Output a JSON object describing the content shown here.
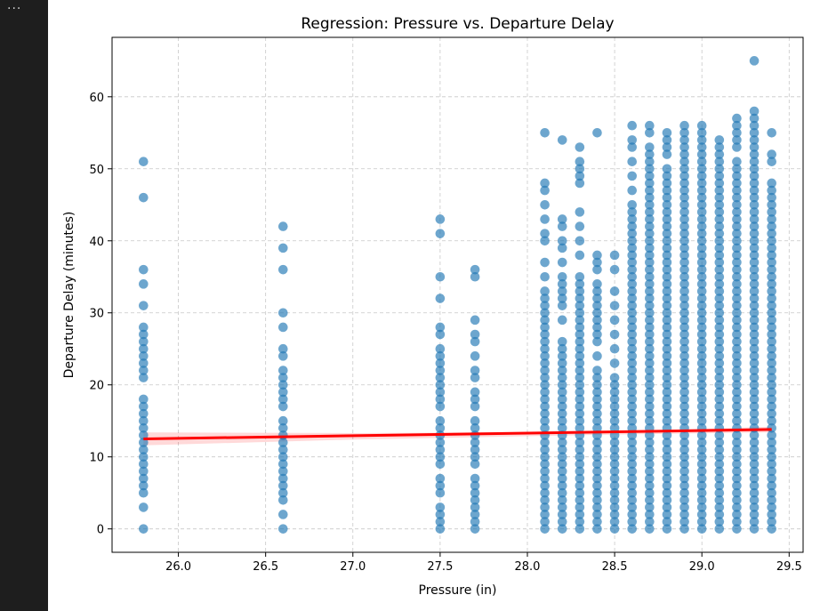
{
  "cell": {
    "more_actions_glyph": "···"
  },
  "chart_data": {
    "type": "scatter",
    "title": "Regression: Pressure vs. Departure Delay",
    "xlabel": "Pressure (in)",
    "ylabel": "Departure Delay (minutes)",
    "xlim": [
      25.62,
      29.58
    ],
    "ylim": [
      -3.25,
      68.25
    ],
    "x_ticks": [
      26.0,
      26.5,
      27.0,
      27.5,
      28.0,
      28.5,
      29.0,
      29.5
    ],
    "x_tick_labels": [
      "26.0",
      "26.5",
      "27.0",
      "27.5",
      "28.0",
      "28.5",
      "29.0",
      "29.5"
    ],
    "y_ticks": [
      0,
      10,
      20,
      30,
      40,
      50,
      60
    ],
    "y_tick_labels": [
      "0",
      "10",
      "20",
      "30",
      "40",
      "50",
      "60"
    ],
    "grid": true,
    "point_color": "#1f77b4",
    "regression_color": "#ff0000",
    "columns": [
      {
        "x": 25.8,
        "y": [
          0,
          3,
          5,
          6,
          7,
          8,
          9,
          10,
          11,
          12,
          13,
          14,
          15,
          16,
          17,
          18,
          21,
          22,
          23,
          24,
          25,
          26,
          27,
          28,
          31,
          34,
          36,
          46,
          51
        ]
      },
      {
        "x": 26.6,
        "y": [
          0,
          2,
          4,
          5,
          6,
          7,
          8,
          9,
          10,
          11,
          12,
          13,
          14,
          15,
          17,
          18,
          19,
          20,
          21,
          22,
          24,
          25,
          28,
          30,
          36,
          39,
          42
        ]
      },
      {
        "x": 27.5,
        "y": [
          0,
          1,
          2,
          3,
          5,
          6,
          7,
          9,
          10,
          11,
          12,
          13,
          14,
          15,
          17,
          18,
          19,
          20,
          21,
          22,
          23,
          24,
          25,
          27,
          28,
          32,
          35,
          41,
          43
        ]
      },
      {
        "x": 27.7,
        "y": [
          0,
          1,
          2,
          3,
          4,
          5,
          6,
          7,
          9,
          10,
          11,
          12,
          13,
          14,
          15,
          17,
          18,
          19,
          21,
          22,
          24,
          26,
          27,
          29,
          35,
          36
        ]
      },
      {
        "x": 28.1,
        "y": [
          0,
          1,
          2,
          3,
          4,
          5,
          6,
          7,
          8,
          9,
          10,
          11,
          12,
          13,
          14,
          15,
          16,
          17,
          18,
          19,
          20,
          21,
          22,
          23,
          24,
          25,
          26,
          27,
          28,
          29,
          30,
          31,
          32,
          33,
          35,
          37,
          40,
          41,
          43,
          45,
          47,
          48,
          55
        ]
      },
      {
        "x": 28.2,
        "y": [
          0,
          1,
          2,
          3,
          4,
          5,
          6,
          7,
          8,
          9,
          10,
          11,
          12,
          13,
          14,
          15,
          16,
          17,
          18,
          19,
          20,
          21,
          22,
          23,
          24,
          25,
          26,
          29,
          31,
          32,
          33,
          34,
          35,
          37,
          39,
          40,
          42,
          43,
          54
        ]
      },
      {
        "x": 28.3,
        "y": [
          0,
          1,
          2,
          3,
          4,
          5,
          6,
          7,
          8,
          9,
          10,
          11,
          12,
          13,
          14,
          15,
          16,
          17,
          18,
          19,
          20,
          21,
          22,
          23,
          24,
          25,
          26,
          27,
          28,
          29,
          30,
          31,
          32,
          33,
          34,
          35,
          38,
          40,
          42,
          44,
          48,
          49,
          50,
          51,
          53
        ]
      },
      {
        "x": 28.4,
        "y": [
          0,
          1,
          2,
          3,
          4,
          5,
          6,
          7,
          8,
          9,
          10,
          11,
          12,
          13,
          14,
          15,
          16,
          17,
          18,
          19,
          20,
          21,
          22,
          24,
          26,
          27,
          28,
          29,
          30,
          31,
          32,
          33,
          34,
          36,
          37,
          38,
          55
        ]
      },
      {
        "x": 28.5,
        "y": [
          0,
          1,
          2,
          3,
          4,
          5,
          6,
          7,
          8,
          9,
          10,
          11,
          12,
          13,
          14,
          15,
          16,
          17,
          18,
          19,
          20,
          21,
          23,
          25,
          27,
          29,
          31,
          33,
          36,
          38
        ]
      },
      {
        "x": 28.6,
        "y": [
          0,
          1,
          2,
          3,
          4,
          5,
          6,
          7,
          8,
          9,
          10,
          11,
          12,
          13,
          14,
          15,
          16,
          17,
          18,
          19,
          20,
          21,
          22,
          23,
          24,
          25,
          26,
          27,
          28,
          29,
          30,
          31,
          32,
          33,
          34,
          35,
          36,
          37,
          38,
          39,
          40,
          41,
          42,
          43,
          44,
          45,
          47,
          49,
          51,
          53,
          54,
          56
        ]
      },
      {
        "x": 28.7,
        "y": [
          0,
          1,
          2,
          3,
          4,
          5,
          6,
          7,
          8,
          9,
          10,
          11,
          12,
          13,
          14,
          15,
          16,
          17,
          18,
          19,
          20,
          21,
          22,
          23,
          24,
          25,
          26,
          27,
          28,
          29,
          30,
          31,
          32,
          33,
          34,
          35,
          36,
          37,
          38,
          39,
          40,
          41,
          42,
          43,
          44,
          45,
          46,
          47,
          48,
          49,
          50,
          51,
          52,
          53,
          55,
          56
        ]
      },
      {
        "x": 28.8,
        "y": [
          0,
          1,
          2,
          3,
          4,
          5,
          6,
          7,
          8,
          9,
          10,
          11,
          12,
          13,
          14,
          15,
          16,
          17,
          18,
          19,
          20,
          21,
          22,
          23,
          24,
          25,
          26,
          27,
          28,
          29,
          30,
          31,
          32,
          33,
          34,
          35,
          36,
          37,
          38,
          39,
          40,
          41,
          42,
          43,
          44,
          45,
          46,
          47,
          48,
          49,
          50,
          52,
          53,
          54,
          55
        ]
      },
      {
        "x": 28.9,
        "y": [
          0,
          1,
          2,
          3,
          4,
          5,
          6,
          7,
          8,
          9,
          10,
          11,
          12,
          13,
          14,
          15,
          16,
          17,
          18,
          19,
          20,
          21,
          22,
          23,
          24,
          25,
          26,
          27,
          28,
          29,
          30,
          31,
          32,
          33,
          34,
          35,
          36,
          37,
          38,
          39,
          40,
          41,
          42,
          43,
          44,
          45,
          46,
          47,
          48,
          49,
          50,
          51,
          52,
          53,
          54,
          55,
          56
        ]
      },
      {
        "x": 29.0,
        "y": [
          0,
          1,
          2,
          3,
          4,
          5,
          6,
          7,
          8,
          9,
          10,
          11,
          12,
          13,
          14,
          15,
          16,
          17,
          18,
          19,
          20,
          21,
          22,
          23,
          24,
          25,
          26,
          27,
          28,
          29,
          30,
          31,
          32,
          33,
          34,
          35,
          36,
          37,
          38,
          39,
          40,
          41,
          42,
          43,
          44,
          45,
          46,
          47,
          48,
          49,
          50,
          51,
          52,
          53,
          54,
          55,
          56
        ]
      },
      {
        "x": 29.1,
        "y": [
          0,
          1,
          2,
          3,
          4,
          5,
          6,
          7,
          8,
          9,
          10,
          11,
          12,
          13,
          14,
          15,
          16,
          17,
          18,
          19,
          20,
          21,
          22,
          23,
          24,
          25,
          26,
          27,
          28,
          29,
          30,
          31,
          32,
          33,
          34,
          35,
          36,
          37,
          38,
          39,
          40,
          41,
          42,
          43,
          44,
          45,
          46,
          47,
          48,
          49,
          50,
          51,
          52,
          53,
          54
        ]
      },
      {
        "x": 29.2,
        "y": [
          0,
          1,
          2,
          3,
          4,
          5,
          6,
          7,
          8,
          9,
          10,
          11,
          12,
          13,
          14,
          15,
          16,
          17,
          18,
          19,
          20,
          21,
          22,
          23,
          24,
          25,
          26,
          27,
          28,
          29,
          30,
          31,
          32,
          33,
          34,
          35,
          36,
          37,
          38,
          39,
          40,
          41,
          42,
          43,
          44,
          45,
          46,
          47,
          48,
          49,
          50,
          51,
          53,
          54,
          55,
          56,
          57
        ]
      },
      {
        "x": 29.3,
        "y": [
          0,
          1,
          2,
          3,
          4,
          5,
          6,
          7,
          8,
          9,
          10,
          11,
          12,
          13,
          14,
          15,
          16,
          17,
          18,
          19,
          20,
          21,
          22,
          23,
          24,
          25,
          26,
          27,
          28,
          29,
          30,
          31,
          32,
          33,
          34,
          35,
          36,
          37,
          38,
          39,
          40,
          41,
          42,
          43,
          44,
          45,
          46,
          47,
          48,
          49,
          50,
          51,
          52,
          53,
          54,
          55,
          56,
          57,
          58,
          65
        ]
      },
      {
        "x": 29.4,
        "y": [
          0,
          1,
          2,
          3,
          4,
          5,
          6,
          7,
          8,
          9,
          10,
          11,
          12,
          13,
          14,
          15,
          16,
          17,
          18,
          19,
          20,
          21,
          22,
          23,
          24,
          25,
          26,
          27,
          28,
          29,
          30,
          31,
          32,
          33,
          34,
          35,
          36,
          37,
          38,
          39,
          40,
          41,
          42,
          43,
          44,
          45,
          46,
          47,
          48,
          51,
          52,
          55
        ]
      }
    ],
    "regression": {
      "x": [
        25.8,
        29.4
      ],
      "y": [
        12.5,
        13.8
      ]
    },
    "confidence_band": {
      "x": [
        25.8,
        27.0,
        28.5,
        29.4
      ],
      "lower": [
        11.6,
        12.4,
        13.1,
        13.4
      ],
      "upper": [
        13.4,
        13.3,
        13.5,
        14.2
      ]
    }
  }
}
